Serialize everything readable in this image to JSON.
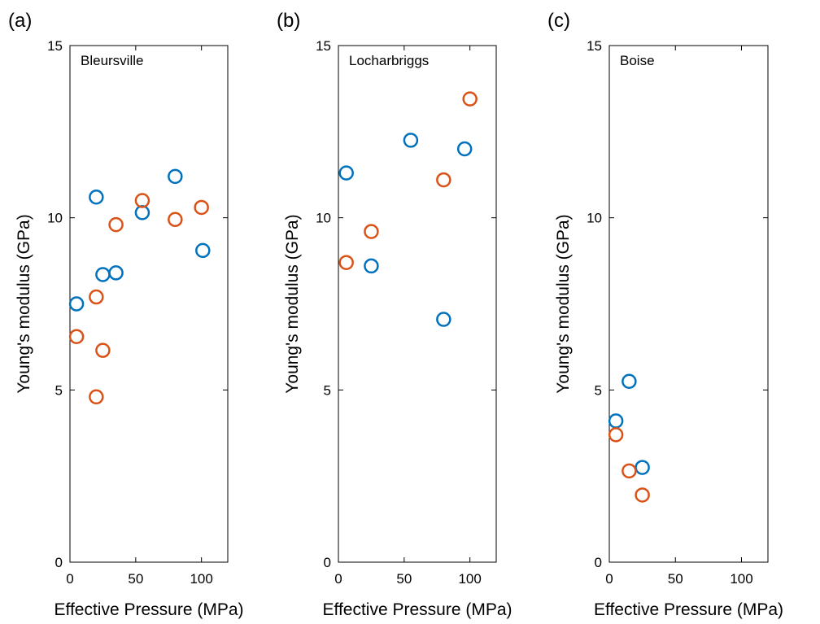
{
  "colors": {
    "series1": "#0072BD",
    "series2": "#D95319",
    "axis": "#000000"
  },
  "chart_data": [
    {
      "type": "scatter",
      "panel_label": "(a)",
      "site": "Bleursville",
      "xlabel": "Effective Pressure (MPa)",
      "ylabel": "Young's modulus (GPa)",
      "xlim": [
        0,
        120
      ],
      "ylim": [
        0,
        15
      ],
      "xticks": [
        "0",
        "50",
        "100"
      ],
      "yticks": [
        "0",
        "5",
        "10",
        "15"
      ],
      "grid": false,
      "series": [
        {
          "x": [
            5,
            20,
            25,
            35,
            55,
            80,
            101
          ],
          "y": [
            7.5,
            10.6,
            8.35,
            8.4,
            10.15,
            11.2,
            9.05
          ]
        },
        {
          "x": [
            5,
            20,
            20,
            25,
            35,
            55,
            80,
            100
          ],
          "y": [
            6.55,
            7.7,
            4.8,
            6.15,
            9.8,
            10.5,
            9.95,
            10.3
          ]
        }
      ]
    },
    {
      "type": "scatter",
      "panel_label": "(b)",
      "site": "Locharbriggs",
      "xlabel": "Effective Pressure (MPa)",
      "ylabel": "Young's modulus (GPa)",
      "xlim": [
        0,
        120
      ],
      "ylim": [
        0,
        15
      ],
      "xticks": [
        "0",
        "50",
        "100"
      ],
      "yticks": [
        "0",
        "5",
        "10",
        "15"
      ],
      "grid": false,
      "series": [
        {
          "x": [
            6,
            25,
            55,
            80,
            96
          ],
          "y": [
            11.3,
            8.6,
            12.25,
            7.05,
            12.0
          ]
        },
        {
          "x": [
            6,
            25,
            80,
            100
          ],
          "y": [
            8.7,
            9.6,
            11.1,
            13.45
          ]
        }
      ]
    },
    {
      "type": "scatter",
      "panel_label": "(c)",
      "site": "Boise",
      "xlabel": "Effective Pressure (MPa)",
      "ylabel": "Young's modulus (GPa)",
      "xlim": [
        0,
        120
      ],
      "ylim": [
        0,
        15
      ],
      "xticks": [
        "0",
        "50",
        "100"
      ],
      "yticks": [
        "0",
        "5",
        "10",
        "15"
      ],
      "grid": false,
      "series": [
        {
          "x": [
            5,
            15,
            25
          ],
          "y": [
            4.1,
            5.25,
            2.75
          ]
        },
        {
          "x": [
            5,
            15,
            25
          ],
          "y": [
            3.7,
            2.65,
            1.95
          ]
        }
      ]
    }
  ]
}
